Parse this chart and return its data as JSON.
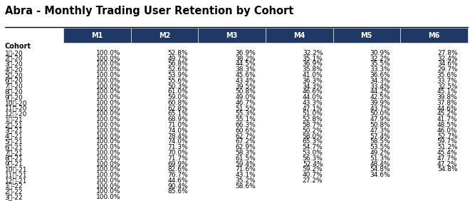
{
  "title": "Abra - Monthly Trading User Retention by Cohort",
  "col_headers": [
    "M1",
    "M2",
    "M3",
    "M4",
    "M5",
    "M6"
  ],
  "cohort_label": "Cohort",
  "rows": [
    [
      "1月-20",
      "100.0%",
      "52.8%",
      "36.9%",
      "32.2%",
      "30.9%",
      "27.8%"
    ],
    [
      "2月-20",
      "100.0%",
      "49.7%",
      "38.2%",
      "35.1%",
      "32.2%",
      "32.4%"
    ],
    [
      "3月-20",
      "100.0%",
      "56.8%",
      "44.5%",
      "36.9%",
      "35.5%",
      "34.6%"
    ],
    [
      "4月-20",
      "100.0%",
      "52.6%",
      "38.3%",
      "35.8%",
      "33.3%",
      "29.7%"
    ],
    [
      "5月-20",
      "100.0%",
      "53.9%",
      "45.6%",
      "41.0%",
      "36.6%",
      "35.6%"
    ],
    [
      "6月-20",
      "100.0%",
      "55.6%",
      "43.4%",
      "36.3%",
      "34.3%",
      "33.7%"
    ],
    [
      "7月-20",
      "100.0%",
      "50.3%",
      "39.5%",
      "34.3%",
      "33.4%",
      "32.5%"
    ],
    [
      "8月-20",
      "100.0%",
      "61.0%",
      "50.8%",
      "46.6%",
      "44.2%",
      "45.1%"
    ],
    [
      "9月-20",
      "100.0%",
      "59.0%",
      "49.0%",
      "44.0%",
      "42.5%",
      "39.8%"
    ],
    [
      "10月-20",
      "100.0%",
      "60.8%",
      "46.7%",
      "43.3%",
      "39.9%",
      "37.8%"
    ],
    [
      "11月-20",
      "100.0%",
      "62.8%",
      "51.5%",
      "47.1%",
      "43.7%",
      "44.6%"
    ],
    [
      "12月-20",
      "100.0%",
      "65.1%",
      "55.3%",
      "51.0%",
      "50.0%",
      "45.2%"
    ],
    [
      "1月-21",
      "100.0%",
      "68.9%",
      "55.1%",
      "52.8%",
      "47.9%",
      "41.7%"
    ],
    [
      "2月-21",
      "100.0%",
      "71.0%",
      "66.3%",
      "58.7%",
      "50.8%",
      "48.5%"
    ],
    [
      "3月-21",
      "100.0%",
      "74.0%",
      "60.6%",
      "50.2%",
      "47.3%",
      "46.0%"
    ],
    [
      "4月-21",
      "100.0%",
      "78.4%",
      "62.7%",
      "58.0%",
      "57.4%",
      "52.7%"
    ],
    [
      "5月-21",
      "100.0%",
      "74.0%",
      "67.2%",
      "65.3%",
      "58.5%",
      "59.7%"
    ],
    [
      "6月-21",
      "100.0%",
      "71.3%",
      "62.9%",
      "54.7%",
      "53.5%",
      "51.2%"
    ],
    [
      "7月-21",
      "100.0%",
      "70.0%",
      "58.3%",
      "53.0%",
      "49.2%",
      "45.4%"
    ],
    [
      "8月-21",
      "100.0%",
      "71.7%",
      "61.5%",
      "56.3%",
      "51.3%",
      "47.7%"
    ],
    [
      "9月-21",
      "100.0%",
      "69.9%",
      "59.4%",
      "52.4%",
      "48.4%",
      "47.2%"
    ],
    [
      "10月-21",
      "100.0%",
      "82.6%",
      "71.6%",
      "59.2%",
      "54.8%",
      "54.8%"
    ],
    [
      "11月-21",
      "100.0%",
      "76.7%",
      "43.1%",
      "40.7%",
      "34.6%",
      ""
    ],
    [
      "12月-21",
      "100.0%",
      "44.6%",
      "35.2%",
      "27.2%",
      "",
      ""
    ],
    [
      "1月-22",
      "100.0%",
      "90.4%",
      "58.6%",
      "",
      "",
      ""
    ],
    [
      "2月-22",
      "100.0%",
      "85.6%",
      "",
      "",
      "",
      ""
    ],
    [
      "3月-22",
      "100.0%",
      "",
      "",
      "",
      "",
      ""
    ]
  ],
  "header_bg": "#1F3864",
  "header_fg": "#FFFFFF",
  "title_fg": "#000000",
  "title_fontsize": 10.5,
  "header_fontsize": 7,
  "cell_fontsize": 6.5,
  "cohort_fontsize": 7,
  "bg_color": "#FFFFFF"
}
